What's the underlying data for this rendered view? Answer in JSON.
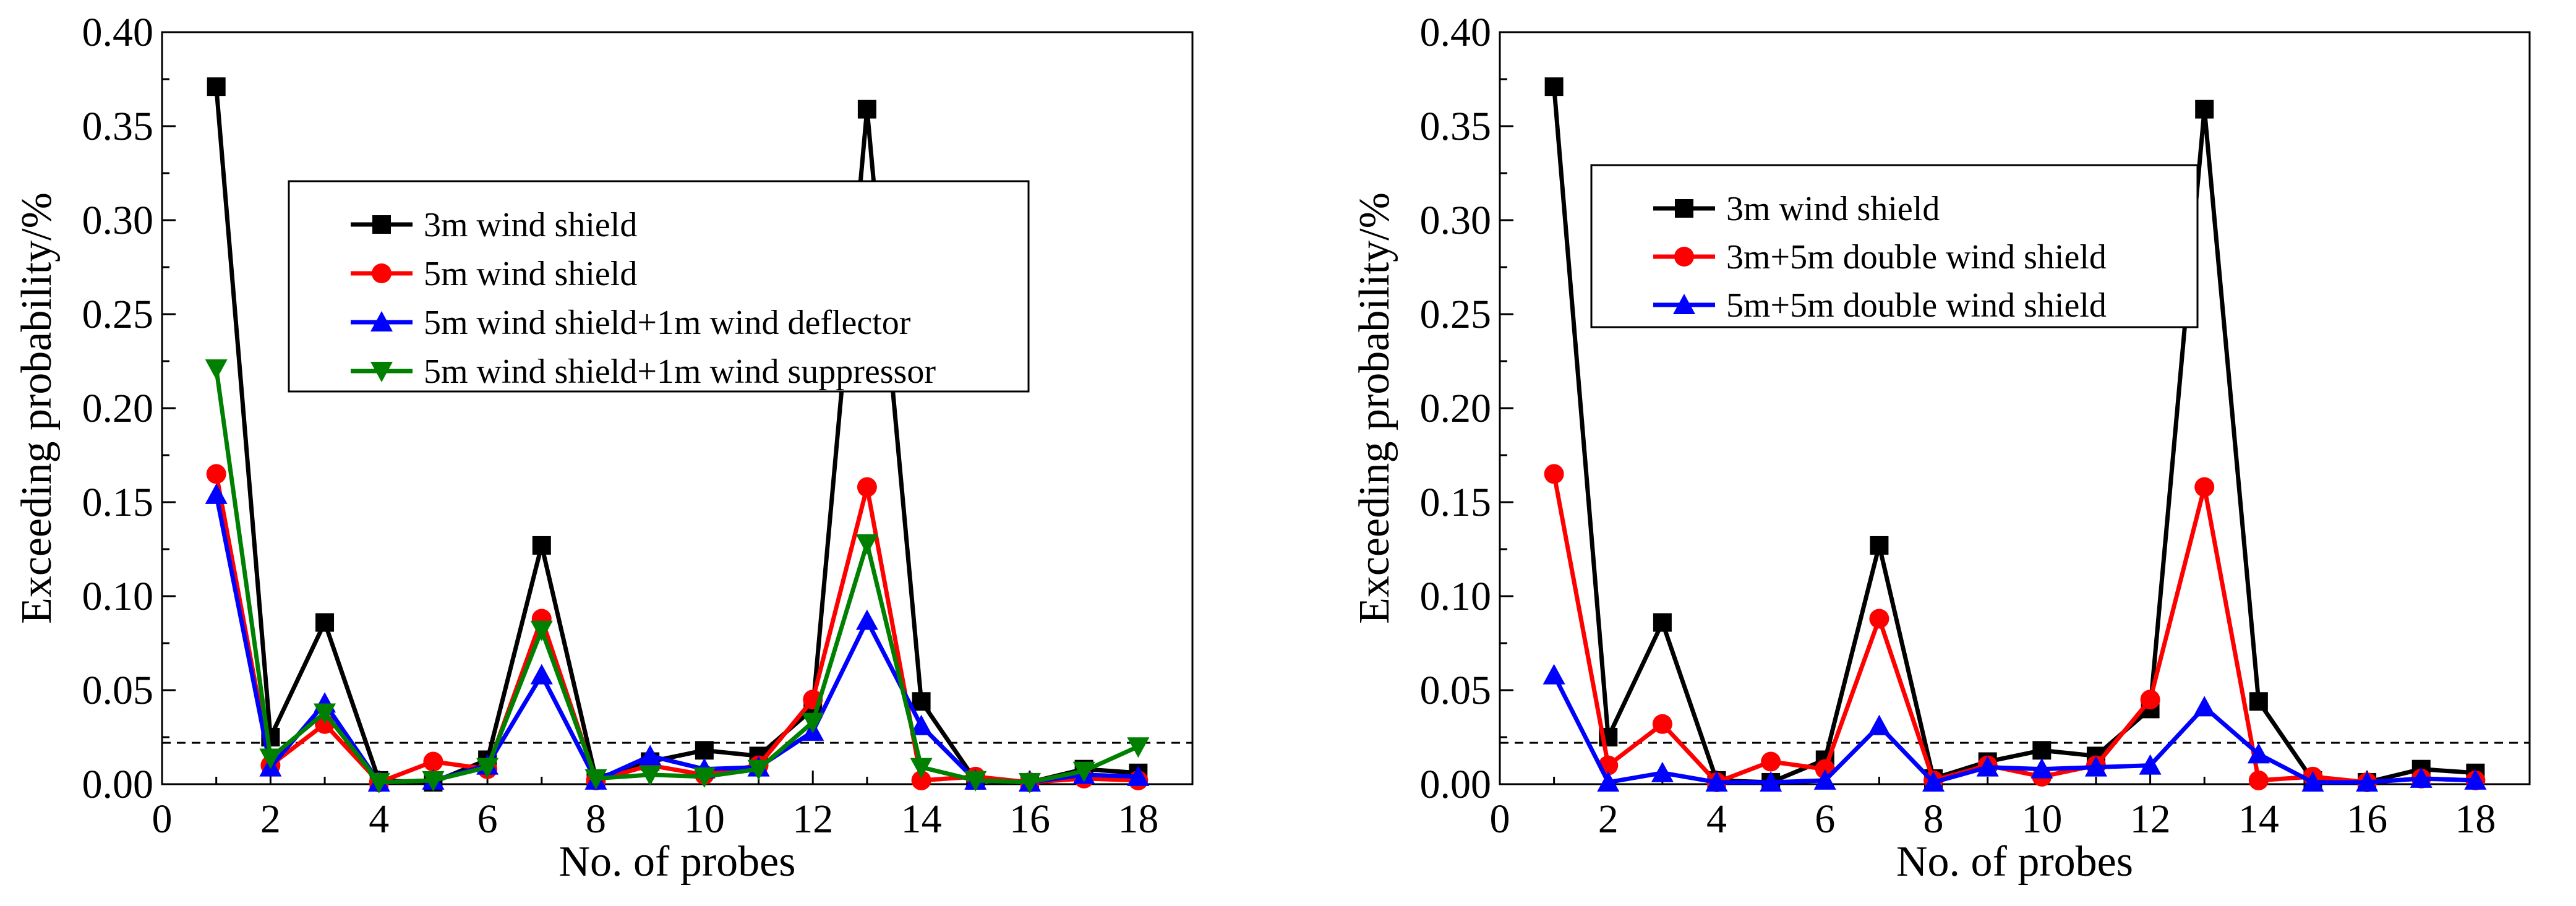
{
  "chart_data": [
    {
      "type": "line",
      "title": "",
      "xlabel": "No. of probes",
      "ylabel": "Exceeding probability/%",
      "xlim": [
        0,
        19
      ],
      "ylim": [
        0,
        0.4
      ],
      "xticks": [
        0,
        2,
        4,
        6,
        8,
        10,
        12,
        14,
        16,
        18
      ],
      "yticks": [
        0.0,
        0.05,
        0.1,
        0.15,
        0.2,
        0.25,
        0.3,
        0.35,
        0.4
      ],
      "xtick_labels": [
        "0",
        "2",
        "4",
        "6",
        "8",
        "10",
        "12",
        "14",
        "16",
        "18"
      ],
      "ytick_labels": [
        "0.00",
        "0.05",
        "0.10",
        "0.15",
        "0.20",
        "0.25",
        "0.30",
        "0.35",
        "0.40"
      ],
      "threshold": 0.022,
      "grid": false,
      "legend_position": "top-center",
      "x": [
        1,
        2,
        3,
        4,
        5,
        6,
        7,
        8,
        9,
        10,
        11,
        12,
        13,
        14,
        15,
        16,
        17,
        18
      ],
      "series": [
        {
          "name": "3m wind shield",
          "color": "#000000",
          "marker": "square",
          "values": [
            0.371,
            0.025,
            0.086,
            0.002,
            0.001,
            0.013,
            0.127,
            0.003,
            0.012,
            0.018,
            0.015,
            0.04,
            0.359,
            0.044,
            0.002,
            0.001,
            0.008,
            0.006
          ]
        },
        {
          "name": "5m wind shield",
          "color": "#ff0000",
          "marker": "circle",
          "values": [
            0.165,
            0.01,
            0.032,
            0.001,
            0.012,
            0.008,
            0.088,
            0.002,
            0.01,
            0.005,
            0.01,
            0.045,
            0.158,
            0.002,
            0.004,
            0.001,
            0.003,
            0.002
          ]
        },
        {
          "name": "5m wind shield+1m wind deflector",
          "color": "#0000ff",
          "marker": "triangle-up",
          "values": [
            0.154,
            0.009,
            0.043,
            0.001,
            0.002,
            0.01,
            0.058,
            0.002,
            0.015,
            0.008,
            0.009,
            0.028,
            0.087,
            0.031,
            0.002,
            0.001,
            0.005,
            0.004
          ]
        },
        {
          "name": "5m wind shield+1m wind suppressor",
          "color": "#008000",
          "marker": "triangle-down",
          "values": [
            0.221,
            0.014,
            0.038,
            0.001,
            0.002,
            0.009,
            0.082,
            0.003,
            0.005,
            0.004,
            0.008,
            0.033,
            0.128,
            0.009,
            0.002,
            0.001,
            0.007,
            0.02
          ]
        }
      ]
    },
    {
      "type": "line",
      "title": "",
      "xlabel": "No. of probes",
      "ylabel": "Exceeding probability/%",
      "xlim": [
        0,
        19
      ],
      "ylim": [
        0,
        0.4
      ],
      "xticks": [
        0,
        2,
        4,
        6,
        8,
        10,
        12,
        14,
        16,
        18
      ],
      "yticks": [
        0.0,
        0.05,
        0.1,
        0.15,
        0.2,
        0.25,
        0.3,
        0.35,
        0.4
      ],
      "xtick_labels": [
        "0",
        "2",
        "4",
        "6",
        "8",
        "10",
        "12",
        "14",
        "16",
        "18"
      ],
      "ytick_labels": [
        "0.00",
        "0.05",
        "0.10",
        "0.15",
        "0.20",
        "0.25",
        "0.30",
        "0.35",
        "0.40"
      ],
      "threshold": 0.022,
      "grid": false,
      "legend_position": "top-center",
      "x": [
        1,
        2,
        3,
        4,
        5,
        6,
        7,
        8,
        9,
        10,
        11,
        12,
        13,
        14,
        15,
        16,
        17,
        18
      ],
      "series": [
        {
          "name": "3m wind shield",
          "color": "#000000",
          "marker": "square",
          "values": [
            0.371,
            0.025,
            0.086,
            0.002,
            0.001,
            0.013,
            0.127,
            0.003,
            0.012,
            0.018,
            0.015,
            0.04,
            0.359,
            0.044,
            0.002,
            0.001,
            0.008,
            0.006
          ]
        },
        {
          "name": "3m+5m double wind shield",
          "color": "#ff0000",
          "marker": "circle",
          "values": [
            0.165,
            0.01,
            0.032,
            0.001,
            0.012,
            0.008,
            0.088,
            0.002,
            0.01,
            0.004,
            0.01,
            0.045,
            0.158,
            0.002,
            0.004,
            0.001,
            0.003,
            0.002
          ]
        },
        {
          "name": "5m+5m double wind shield",
          "color": "#0000ff",
          "marker": "triangle-up",
          "values": [
            0.058,
            0.001,
            0.006,
            0.001,
            0.001,
            0.002,
            0.031,
            0.001,
            0.009,
            0.008,
            0.009,
            0.01,
            0.041,
            0.016,
            0.001,
            0.001,
            0.003,
            0.002
          ]
        }
      ]
    }
  ]
}
